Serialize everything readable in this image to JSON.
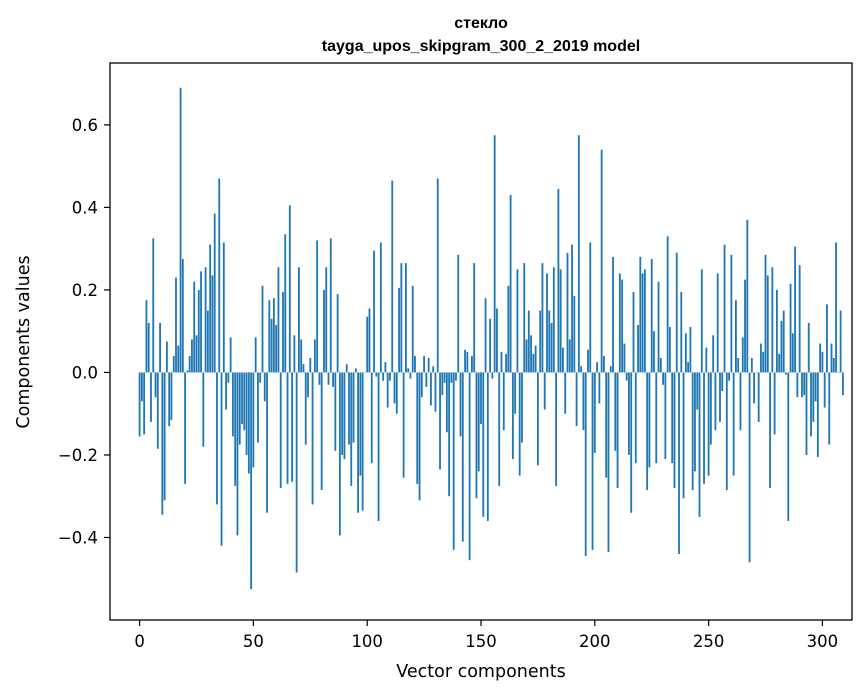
{
  "chart_data": {
    "type": "bar",
    "title": "стекло",
    "subtitle": "tayga_upos_skipgram_300_2_2019 model",
    "xlabel": "Vector components",
    "ylabel": "Components values",
    "xlim": [
      -13,
      313
    ],
    "ylim": [
      -0.6,
      0.75
    ],
    "x_ticks": [
      0,
      50,
      100,
      150,
      200,
      250,
      300
    ],
    "y_ticks": [
      -0.4,
      -0.2,
      0.0,
      0.2,
      0.4,
      0.6
    ],
    "y_tick_labels": [
      "−0.4",
      "−0.2",
      "0.0",
      "0.2",
      "0.4",
      "0.6"
    ],
    "bar_color": "#1f77b4",
    "grid": false,
    "values": [
      -0.155,
      -0.07,
      -0.15,
      0.175,
      0.12,
      -0.12,
      0.325,
      -0.06,
      -0.185,
      0.12,
      -0.345,
      -0.31,
      0.075,
      -0.13,
      -0.115,
      0.04,
      0.23,
      0.065,
      0.69,
      0.275,
      -0.27,
      0.005,
      0.04,
      0.08,
      0.22,
      0.09,
      0.2,
      0.245,
      -0.18,
      0.255,
      0.15,
      0.31,
      0.235,
      0.385,
      -0.32,
      0.47,
      -0.42,
      0.315,
      -0.09,
      -0.025,
      0.085,
      -0.155,
      -0.275,
      -0.395,
      -0.175,
      -0.125,
      -0.14,
      -0.2,
      -0.245,
      -0.525,
      -0.23,
      0.085,
      -0.17,
      -0.025,
      0.21,
      -0.07,
      -0.34,
      0.175,
      0.13,
      0.18,
      0.115,
      0.255,
      -0.28,
      0.195,
      0.335,
      -0.27,
      0.405,
      -0.265,
      0.09,
      -0.485,
      0.255,
      0.08,
      0.02,
      -0.175,
      -0.06,
      0.035,
      -0.32,
      0.08,
      0.32,
      -0.03,
      -0.285,
      0.2,
      0.255,
      -0.03,
      0.325,
      -0.035,
      -0.19,
      0.19,
      -0.395,
      -0.2,
      -0.21,
      0.02,
      -0.175,
      -0.275,
      -0.17,
      0.01,
      -0.34,
      -0.25,
      -0.335,
      0.0,
      0.135,
      0.155,
      -0.22,
      0.295,
      -0.01,
      -0.36,
      0.315,
      -0.02,
      0.025,
      -0.085,
      -0.02,
      0.465,
      -0.075,
      -0.1,
      0.205,
      0.265,
      -0.255,
      0.265,
      0.01,
      -0.015,
      0.21,
      0.04,
      -0.27,
      -0.31,
      -0.06,
      0.04,
      -0.035,
      0.035,
      -0.08,
      0.015,
      -0.095,
      0.47,
      -0.235,
      -0.055,
      -0.025,
      -0.145,
      -0.3,
      -0.025,
      -0.43,
      -0.02,
      0.285,
      -0.155,
      -0.41,
      0.055,
      0.05,
      -0.455,
      0.04,
      0.265,
      -0.305,
      -0.24,
      -0.125,
      -0.35,
      0.18,
      -0.36,
      0.13,
      -0.015,
      0.575,
      0.155,
      -0.275,
      0.05,
      -0.14,
      0.045,
      0.21,
      0.43,
      -0.21,
      -0.1,
      0.25,
      -0.25,
      -0.17,
      0.265,
      0.08,
      0.15,
      0.09,
      0.045,
      0.065,
      -0.225,
      0.15,
      0.265,
      -0.09,
      0.24,
      0.15,
      0.12,
      0.255,
      -0.275,
      0.445,
      0.25,
      0.06,
      -0.1,
      0.29,
      0.08,
      0.31,
      0.185,
      -0.13,
      0.575,
      0.015,
      -0.14,
      -0.445,
      0.055,
      0.315,
      -0.43,
      -0.195,
      0.025,
      -0.075,
      0.54,
      0.04,
      -0.255,
      -0.435,
      0.015,
      0.28,
      -0.19,
      -0.28,
      0.24,
      0.225,
      0.07,
      -0.02,
      -0.2,
      -0.34,
      0.195,
      -0.22,
      0.115,
      0.28,
      0.24,
      0.25,
      -0.285,
      -0.23,
      0.275,
      0.1,
      -0.22,
      0.22,
      0.035,
      -0.03,
      -0.21,
      0.33,
      0.11,
      -0.22,
      -0.28,
      0.29,
      -0.44,
      0.195,
      -0.305,
      0.095,
      0.025,
      0.11,
      -0.285,
      -0.24,
      -0.09,
      -0.35,
      0.25,
      -0.27,
      0.06,
      -0.25,
      -0.175,
      0.09,
      -0.14,
      0.24,
      -0.12,
      -0.045,
      0.31,
      -0.285,
      -0.02,
      0.285,
      -0.25,
      0.175,
      0.035,
      -0.14,
      0.085,
      0.225,
      0.37,
      -0.46,
      0.035,
      -0.075,
      0.0,
      -0.12,
      0.07,
      0.05,
      0.285,
      0.235,
      -0.28,
      0.255,
      -0.15,
      0.2,
      0.045,
      0.125,
      0.15,
      -0.005,
      -0.36,
      0.215,
      0.095,
      0.305,
      -0.06,
      0.26,
      -0.06,
      -0.055,
      -0.2,
      0.12,
      -0.155,
      -0.12,
      -0.07,
      -0.205,
      0.07,
      0.05,
      -0.085,
      0.165,
      -0.175,
      0.07,
      0.035,
      0.315,
      0.0,
      0.15,
      -0.055
    ]
  }
}
